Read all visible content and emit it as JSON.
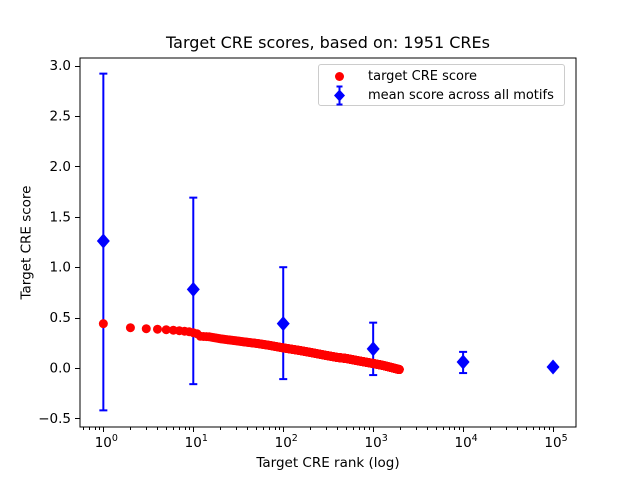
{
  "chart_data": {
    "type": "scatter",
    "title": "Target CRE scores, based on: 1951 CREs",
    "xlabel": "Target CRE rank (log)",
    "ylabel": "Target CRE score",
    "x_scale": "log",
    "grid": false,
    "xlim": [
      0.55,
      180000
    ],
    "ylim": [
      -0.585,
      3.075
    ],
    "x_ticks": [
      1,
      10,
      100,
      1000,
      10000,
      100000
    ],
    "x_tick_exponents": [
      "0",
      "1",
      "2",
      "3",
      "4",
      "5"
    ],
    "y_ticks": [
      -0.5,
      0.0,
      0.5,
      1.0,
      1.5,
      2.0,
      2.5,
      3.0
    ],
    "y_tick_labels": [
      "−0.5",
      "0.0",
      "0.5",
      "1.0",
      "1.5",
      "2.0",
      "2.5",
      "3.0"
    ],
    "legend_position": "upper right",
    "series": [
      {
        "name": "target CRE score",
        "type": "scatter",
        "marker": "circle",
        "color": "#ff0000",
        "rank_range": [
          1,
          1951
        ],
        "anchors": [
          [
            1,
            0.44
          ],
          [
            2,
            0.4
          ],
          [
            3,
            0.39
          ],
          [
            4,
            0.385
          ],
          [
            5,
            0.38
          ],
          [
            6,
            0.375
          ],
          [
            7,
            0.37
          ],
          [
            8,
            0.365
          ],
          [
            9,
            0.36
          ],
          [
            10,
            0.35
          ],
          [
            11,
            0.34
          ],
          [
            12,
            0.315
          ],
          [
            15,
            0.31
          ],
          [
            20,
            0.29
          ],
          [
            30,
            0.27
          ],
          [
            40,
            0.255
          ],
          [
            50,
            0.245
          ],
          [
            70,
            0.225
          ],
          [
            100,
            0.2
          ],
          [
            150,
            0.175
          ],
          [
            200,
            0.155
          ],
          [
            300,
            0.125
          ],
          [
            400,
            0.105
          ],
          [
            500,
            0.095
          ],
          [
            700,
            0.07
          ],
          [
            1000,
            0.045
          ],
          [
            1300,
            0.025
          ],
          [
            1600,
            0.005
          ],
          [
            1951,
            -0.015
          ]
        ]
      },
      {
        "name": "mean score across all motifs",
        "type": "errorbar",
        "marker": "diamond",
        "color": "#0000ff",
        "points": [
          {
            "x": 1,
            "y": 1.26,
            "lo": -0.42,
            "hi": 2.92
          },
          {
            "x": 10,
            "y": 0.78,
            "lo": -0.16,
            "hi": 1.69
          },
          {
            "x": 100,
            "y": 0.44,
            "lo": -0.11,
            "hi": 1.0
          },
          {
            "x": 1000,
            "y": 0.19,
            "lo": -0.07,
            "hi": 0.45
          },
          {
            "x": 10000,
            "y": 0.06,
            "lo": -0.05,
            "hi": 0.16
          },
          {
            "x": 100000,
            "y": 0.01,
            "lo": -0.01,
            "hi": 0.03
          }
        ]
      }
    ]
  }
}
